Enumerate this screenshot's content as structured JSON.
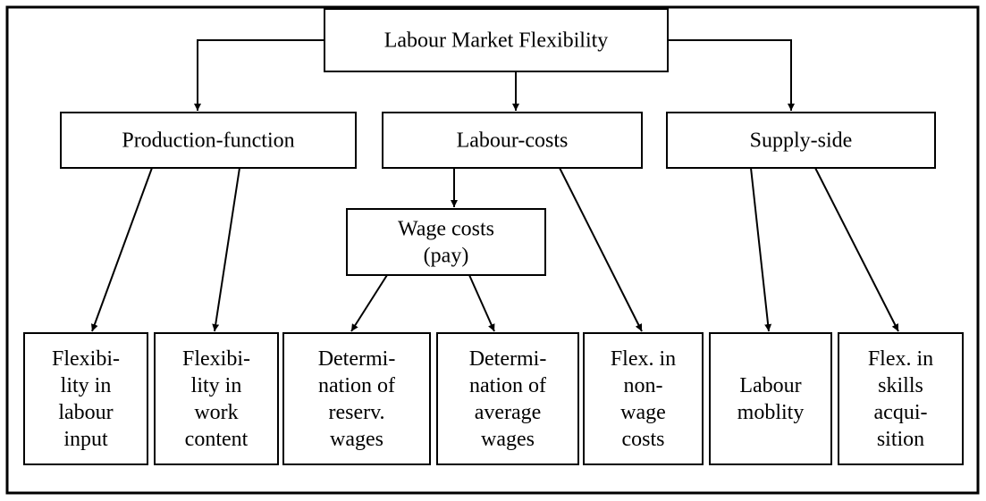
{
  "nodes": [
    {
      "lines": [
        "Labour Market Flexibility"
      ]
    },
    {
      "lines": [
        "Production-function"
      ]
    },
    {
      "lines": [
        "Labour-costs"
      ]
    },
    {
      "lines": [
        "Supply-side"
      ]
    },
    {
      "lines": [
        "Wage costs",
        "(pay)"
      ]
    },
    {
      "lines": [
        "Flexibi-",
        "lity in",
        "labour",
        "input"
      ]
    },
    {
      "lines": [
        "Flexibi-",
        "lity in",
        "work",
        "content"
      ]
    },
    {
      "lines": [
        "Determi-",
        "nation of",
        "reserv.",
        "wages"
      ]
    },
    {
      "lines": [
        "Determi-",
        "nation of",
        "average",
        "wages"
      ]
    },
    {
      "lines": [
        "Flex. in",
        "non-",
        "wage",
        "costs"
      ]
    },
    {
      "lines": [
        "Labour",
        "moblity"
      ]
    },
    {
      "lines": [
        "Flex. in",
        "skills",
        "acqui-",
        "sition"
      ]
    }
  ]
}
